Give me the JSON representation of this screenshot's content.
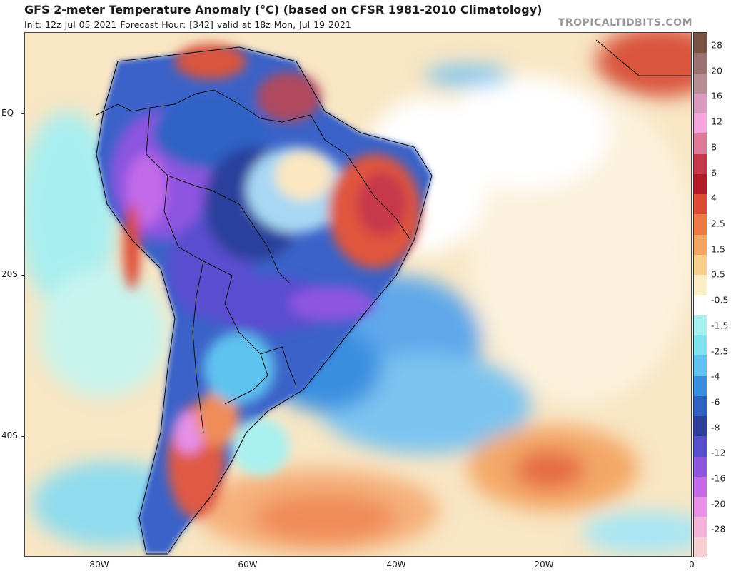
{
  "header": {
    "title": "GFS 2-meter Temperature Anomaly (°C) (based on CFSR 1981-2010 Climatology)",
    "subtitle": "Init: 12z Jul 05 2021   Forecast Hour: [342]   valid at 18z Mon, Jul 19 2021",
    "brand": "TROPICALTIDBITS.COM"
  },
  "map": {
    "lat_labels": [
      {
        "text": "EQ"
      },
      {
        "text": "20S"
      },
      {
        "text": "40S"
      }
    ],
    "lon_labels": [
      {
        "text": "80W"
      },
      {
        "text": "60W"
      },
      {
        "text": "40W"
      },
      {
        "text": "20W"
      },
      {
        "text": "0"
      }
    ]
  },
  "colorbar": {
    "labels": [
      "28",
      "20",
      "16",
      "12",
      "8",
      "6",
      "4",
      "2.5",
      "1.5",
      "0.5",
      "-0.5",
      "-1.5",
      "-2.5",
      "-4",
      "-6",
      "-8",
      "-12",
      "-16",
      "-20",
      "-28"
    ],
    "colors": [
      "#7a5442",
      "#9a7272",
      "#b78e93",
      "#d99ac0",
      "#f2a6dc",
      "#e07a9a",
      "#c8384b",
      "#b11a26",
      "#dd4a36",
      "#ef7a46",
      "#f5a562",
      "#f8cf8e",
      "#fcefc8",
      "#ffffff",
      "#a8f0f0",
      "#7fe2f0",
      "#5fc3ef",
      "#3b8fe0",
      "#2f62c4",
      "#2c3f9c",
      "#5a4ed0",
      "#8d55e0",
      "#c36be8",
      "#e690e8",
      "#f2b4d8",
      "#f6cfd2"
    ]
  }
}
